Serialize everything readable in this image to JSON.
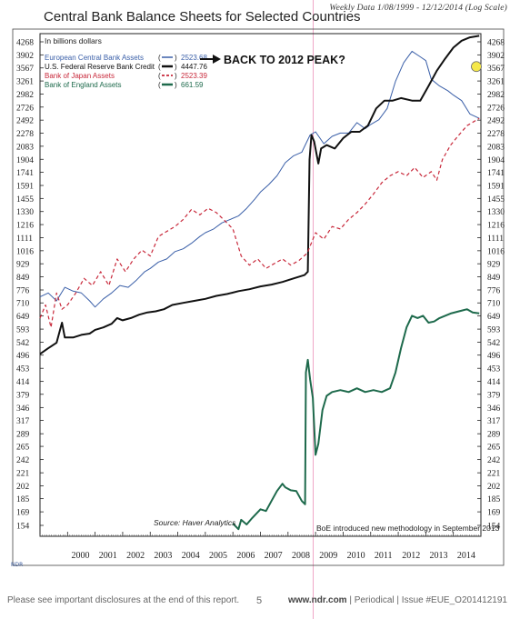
{
  "header": {
    "date_range": "Weekly Data 1/08/1999 - 12/12/2014 (Log Scale)"
  },
  "footer": {
    "disclosure": "Please see important disclosures at the end of this report.",
    "page_number": "5",
    "site": "www.ndr.com",
    "publication": " | Periodical | Issue #EUE_O201412191"
  },
  "brand_mark": "NDR",
  "chart_data": {
    "type": "line",
    "title": "Central Bank Balance Sheets for Selected Countries",
    "unit_label": "In billions dollars",
    "scale": "log",
    "ylim": [
      150,
      4300
    ],
    "xlim": [
      1999.0,
      2015.0
    ],
    "y_ticks": [
      4268,
      3902,
      3567,
      3261,
      2982,
      2726,
      2492,
      2278,
      2083,
      1904,
      1741,
      1591,
      1455,
      1330,
      1216,
      1111,
      1016,
      929,
      849,
      776,
      710,
      649,
      593,
      542,
      496,
      453,
      414,
      379,
      346,
      317,
      289,
      265,
      242,
      221,
      202,
      185,
      169,
      154
    ],
    "x_ticks": [
      "2000",
      "2001",
      "2002",
      "2003",
      "2004",
      "2005",
      "2006",
      "2007",
      "2008",
      "2009",
      "2010",
      "2011",
      "2012",
      "2013",
      "2014"
    ],
    "source": "Source: Haver Analytics",
    "annotation_arrow": "BACK TO 2012 PEAK?",
    "annotation_note": "BoE introduced new methodology in September 2013",
    "highlight_year": 2008.75,
    "series": [
      {
        "name": "European Central Bank Assets",
        "latest": "2523.68",
        "color": "#3a5fa8",
        "style": "solid-thin",
        "points": [
          [
            1999.0,
            740
          ],
          [
            1999.3,
            760
          ],
          [
            1999.6,
            720
          ],
          [
            1999.9,
            790
          ],
          [
            2000.2,
            770
          ],
          [
            2000.5,
            760
          ],
          [
            2000.8,
            720
          ],
          [
            2001.0,
            690
          ],
          [
            2001.3,
            730
          ],
          [
            2001.6,
            760
          ],
          [
            2001.9,
            800
          ],
          [
            2002.2,
            790
          ],
          [
            2002.5,
            830
          ],
          [
            2002.8,
            880
          ],
          [
            2003.0,
            900
          ],
          [
            2003.3,
            940
          ],
          [
            2003.6,
            960
          ],
          [
            2003.9,
            1010
          ],
          [
            2004.2,
            1030
          ],
          [
            2004.5,
            1070
          ],
          [
            2004.8,
            1120
          ],
          [
            2005.0,
            1150
          ],
          [
            2005.3,
            1180
          ],
          [
            2005.6,
            1230
          ],
          [
            2005.9,
            1260
          ],
          [
            2006.2,
            1290
          ],
          [
            2006.5,
            1360
          ],
          [
            2006.8,
            1450
          ],
          [
            2007.0,
            1520
          ],
          [
            2007.3,
            1600
          ],
          [
            2007.6,
            1700
          ],
          [
            2007.9,
            1860
          ],
          [
            2008.2,
            1950
          ],
          [
            2008.5,
            2000
          ],
          [
            2008.8,
            2250
          ],
          [
            2009.0,
            2300
          ],
          [
            2009.3,
            2120
          ],
          [
            2009.6,
            2230
          ],
          [
            2009.9,
            2280
          ],
          [
            2010.2,
            2280
          ],
          [
            2010.5,
            2450
          ],
          [
            2010.8,
            2350
          ],
          [
            2011.0,
            2420
          ],
          [
            2011.3,
            2500
          ],
          [
            2011.6,
            2700
          ],
          [
            2011.9,
            3250
          ],
          [
            2012.2,
            3700
          ],
          [
            2012.5,
            4000
          ],
          [
            2012.8,
            3850
          ],
          [
            2013.0,
            3750
          ],
          [
            2013.2,
            3300
          ],
          [
            2013.5,
            3150
          ],
          [
            2013.8,
            3050
          ],
          [
            2014.0,
            2960
          ],
          [
            2014.3,
            2850
          ],
          [
            2014.6,
            2600
          ],
          [
            2014.94,
            2523
          ]
        ]
      },
      {
        "name": "U.S. Federal Reserve Bank Credit",
        "latest": "4447.76",
        "color": "#111111",
        "style": "solid-thick",
        "points": [
          [
            1999.0,
            500
          ],
          [
            1999.3,
            520
          ],
          [
            1999.6,
            540
          ],
          [
            1999.8,
            620
          ],
          [
            1999.9,
            560
          ],
          [
            2000.2,
            560
          ],
          [
            2000.5,
            570
          ],
          [
            2000.8,
            575
          ],
          [
            2001.0,
            590
          ],
          [
            2001.3,
            600
          ],
          [
            2001.6,
            615
          ],
          [
            2001.8,
            640
          ],
          [
            2002.0,
            630
          ],
          [
            2002.3,
            640
          ],
          [
            2002.6,
            655
          ],
          [
            2002.9,
            665
          ],
          [
            2003.2,
            670
          ],
          [
            2003.5,
            680
          ],
          [
            2003.8,
            700
          ],
          [
            2004.2,
            710
          ],
          [
            2004.6,
            720
          ],
          [
            2005.0,
            730
          ],
          [
            2005.4,
            745
          ],
          [
            2005.8,
            755
          ],
          [
            2006.2,
            770
          ],
          [
            2006.6,
            780
          ],
          [
            2007.0,
            795
          ],
          [
            2007.4,
            805
          ],
          [
            2007.8,
            820
          ],
          [
            2008.2,
            840
          ],
          [
            2008.6,
            860
          ],
          [
            2008.72,
            880
          ],
          [
            2008.78,
            1900
          ],
          [
            2008.85,
            2250
          ],
          [
            2008.95,
            2150
          ],
          [
            2009.1,
            1850
          ],
          [
            2009.2,
            2050
          ],
          [
            2009.4,
            2100
          ],
          [
            2009.7,
            2050
          ],
          [
            2010.0,
            2200
          ],
          [
            2010.3,
            2300
          ],
          [
            2010.6,
            2300
          ],
          [
            2010.9,
            2400
          ],
          [
            2011.2,
            2700
          ],
          [
            2011.5,
            2850
          ],
          [
            2011.8,
            2850
          ],
          [
            2012.1,
            2900
          ],
          [
            2012.5,
            2850
          ],
          [
            2012.8,
            2850
          ],
          [
            2013.1,
            3150
          ],
          [
            2013.4,
            3500
          ],
          [
            2013.7,
            3800
          ],
          [
            2014.0,
            4100
          ],
          [
            2014.3,
            4300
          ],
          [
            2014.6,
            4400
          ],
          [
            2014.94,
            4447
          ]
        ]
      },
      {
        "name": "Bank of Japan Assets",
        "latest": "2523.39",
        "color": "#c8283a",
        "style": "dashed",
        "points": [
          [
            1999.0,
            640
          ],
          [
            1999.2,
            700
          ],
          [
            1999.4,
            600
          ],
          [
            1999.6,
            760
          ],
          [
            1999.8,
            680
          ],
          [
            2000.0,
            700
          ],
          [
            2000.3,
            760
          ],
          [
            2000.6,
            840
          ],
          [
            2000.9,
            800
          ],
          [
            2001.2,
            880
          ],
          [
            2001.5,
            800
          ],
          [
            2001.8,
            960
          ],
          [
            2002.1,
            880
          ],
          [
            2002.4,
            960
          ],
          [
            2002.7,
            1020
          ],
          [
            2003.0,
            980
          ],
          [
            2003.3,
            1120
          ],
          [
            2003.6,
            1160
          ],
          [
            2003.9,
            1200
          ],
          [
            2004.2,
            1260
          ],
          [
            2004.5,
            1350
          ],
          [
            2004.8,
            1300
          ],
          [
            2005.1,
            1360
          ],
          [
            2005.4,
            1320
          ],
          [
            2005.7,
            1250
          ],
          [
            2006.0,
            1180
          ],
          [
            2006.3,
            980
          ],
          [
            2006.6,
            920
          ],
          [
            2006.9,
            960
          ],
          [
            2007.2,
            900
          ],
          [
            2007.5,
            930
          ],
          [
            2007.8,
            960
          ],
          [
            2008.1,
            920
          ],
          [
            2008.4,
            950
          ],
          [
            2008.7,
            1000
          ],
          [
            2009.0,
            1150
          ],
          [
            2009.3,
            1100
          ],
          [
            2009.6,
            1200
          ],
          [
            2009.9,
            1180
          ],
          [
            2010.2,
            1260
          ],
          [
            2010.5,
            1320
          ],
          [
            2010.8,
            1400
          ],
          [
            2011.1,
            1500
          ],
          [
            2011.4,
            1620
          ],
          [
            2011.7,
            1700
          ],
          [
            2012.0,
            1750
          ],
          [
            2012.3,
            1700
          ],
          [
            2012.6,
            1800
          ],
          [
            2012.9,
            1680
          ],
          [
            2013.2,
            1750
          ],
          [
            2013.4,
            1650
          ],
          [
            2013.6,
            1900
          ],
          [
            2013.9,
            2100
          ],
          [
            2014.2,
            2250
          ],
          [
            2014.5,
            2400
          ],
          [
            2014.94,
            2523
          ]
        ]
      },
      {
        "name": "Bank of England Assets",
        "latest": "661.59",
        "color": "#1e6a4c",
        "style": "solid-thick",
        "points": [
          [
            2006.0,
            156
          ],
          [
            2006.2,
            150
          ],
          [
            2006.3,
            160
          ],
          [
            2006.5,
            155
          ],
          [
            2006.7,
            162
          ],
          [
            2007.0,
            172
          ],
          [
            2007.2,
            170
          ],
          [
            2007.4,
            182
          ],
          [
            2007.6,
            195
          ],
          [
            2007.8,
            205
          ],
          [
            2007.9,
            200
          ],
          [
            2008.1,
            196
          ],
          [
            2008.3,
            195
          ],
          [
            2008.5,
            182
          ],
          [
            2008.62,
            178
          ],
          [
            2008.65,
            440
          ],
          [
            2008.72,
            480
          ],
          [
            2008.8,
            420
          ],
          [
            2008.9,
            370
          ],
          [
            2009.0,
            250
          ],
          [
            2009.1,
            270
          ],
          [
            2009.25,
            340
          ],
          [
            2009.4,
            375
          ],
          [
            2009.6,
            385
          ],
          [
            2009.9,
            390
          ],
          [
            2010.2,
            385
          ],
          [
            2010.5,
            395
          ],
          [
            2010.8,
            385
          ],
          [
            2011.1,
            390
          ],
          [
            2011.4,
            385
          ],
          [
            2011.7,
            395
          ],
          [
            2011.9,
            440
          ],
          [
            2012.1,
            520
          ],
          [
            2012.3,
            600
          ],
          [
            2012.5,
            650
          ],
          [
            2012.7,
            640
          ],
          [
            2012.9,
            650
          ],
          [
            2013.1,
            620
          ],
          [
            2013.3,
            625
          ],
          [
            2013.5,
            640
          ],
          [
            2013.7,
            650
          ],
          [
            2013.9,
            660
          ],
          [
            2014.2,
            670
          ],
          [
            2014.5,
            680
          ],
          [
            2014.7,
            665
          ],
          [
            2014.94,
            661
          ]
        ]
      }
    ]
  }
}
